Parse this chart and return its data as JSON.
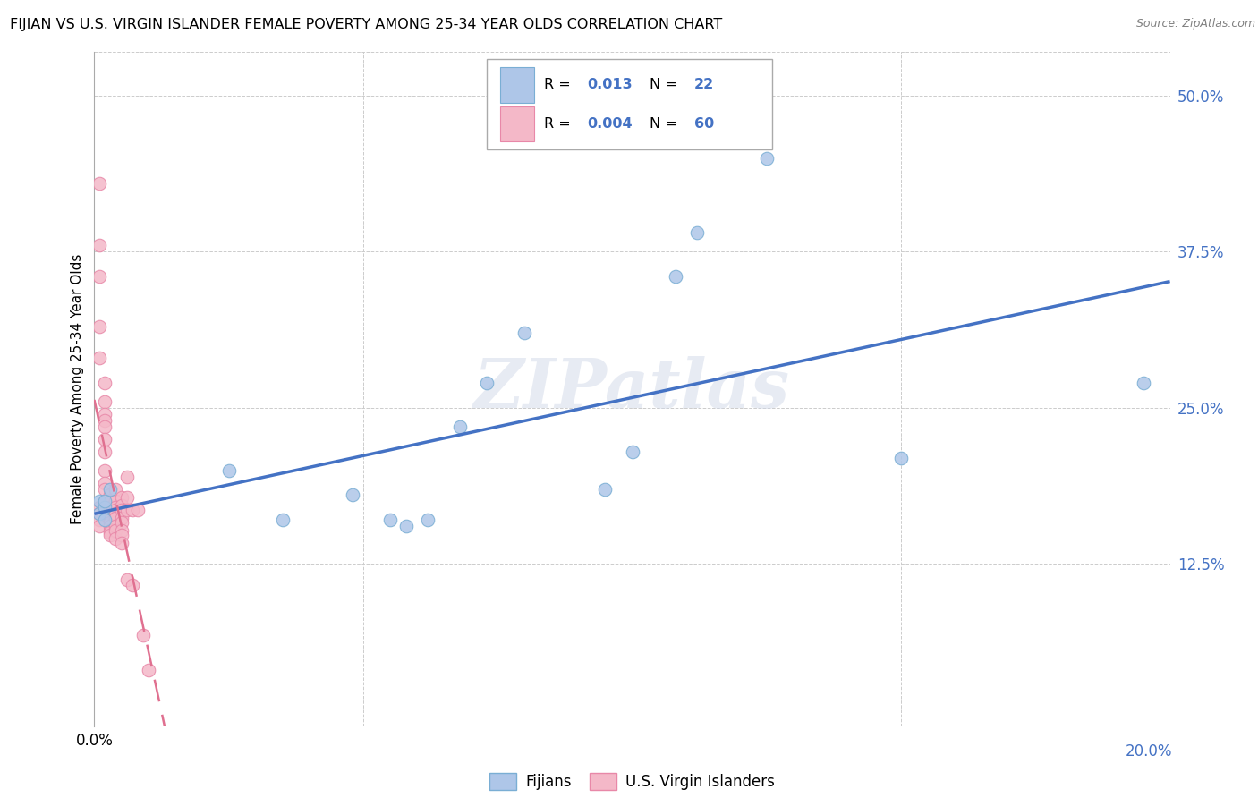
{
  "title": "FIJIAN VS U.S. VIRGIN ISLANDER FEMALE POVERTY AMONG 25-34 YEAR OLDS CORRELATION CHART",
  "source": "Source: ZipAtlas.com",
  "ylabel": "Female Poverty Among 25-34 Year Olds",
  "ytick_vals": [
    0.125,
    0.25,
    0.375,
    0.5
  ],
  "ytick_labels": [
    "12.5%",
    "25.0%",
    "37.5%",
    "50.0%"
  ],
  "xlim": [
    0.0,
    0.2
  ],
  "ylim": [
    -0.005,
    0.535
  ],
  "fijian_color": "#aec6e8",
  "fijian_edge": "#7aaed4",
  "usvi_color": "#f4b8c8",
  "usvi_edge": "#e888a8",
  "fijian_R": "0.013",
  "fijian_N": "22",
  "usvi_R": "0.004",
  "usvi_N": "60",
  "fijian_x": [
    0.001,
    0.001,
    0.002,
    0.002,
    0.002,
    0.003,
    0.025,
    0.035,
    0.048,
    0.055,
    0.058,
    0.062,
    0.068,
    0.073,
    0.08,
    0.095,
    0.1,
    0.108,
    0.112,
    0.125,
    0.15,
    0.195
  ],
  "fijian_y": [
    0.165,
    0.175,
    0.17,
    0.16,
    0.175,
    0.185,
    0.2,
    0.16,
    0.18,
    0.16,
    0.155,
    0.16,
    0.235,
    0.27,
    0.31,
    0.185,
    0.215,
    0.355,
    0.39,
    0.45,
    0.21,
    0.27
  ],
  "usvi_x": [
    0.001,
    0.001,
    0.001,
    0.001,
    0.001,
    0.001,
    0.001,
    0.001,
    0.001,
    0.002,
    0.002,
    0.002,
    0.002,
    0.002,
    0.002,
    0.002,
    0.002,
    0.002,
    0.002,
    0.002,
    0.003,
    0.003,
    0.003,
    0.003,
    0.003,
    0.003,
    0.003,
    0.003,
    0.003,
    0.003,
    0.003,
    0.003,
    0.003,
    0.003,
    0.004,
    0.004,
    0.004,
    0.004,
    0.004,
    0.004,
    0.004,
    0.004,
    0.004,
    0.005,
    0.005,
    0.005,
    0.005,
    0.005,
    0.005,
    0.005,
    0.005,
    0.006,
    0.006,
    0.006,
    0.006,
    0.007,
    0.007,
    0.008,
    0.009,
    0.01
  ],
  "usvi_y": [
    0.43,
    0.38,
    0.355,
    0.315,
    0.29,
    0.17,
    0.165,
    0.16,
    0.155,
    0.27,
    0.255,
    0.245,
    0.24,
    0.235,
    0.225,
    0.215,
    0.2,
    0.19,
    0.185,
    0.175,
    0.18,
    0.175,
    0.175,
    0.17,
    0.168,
    0.165,
    0.165,
    0.162,
    0.16,
    0.158,
    0.155,
    0.152,
    0.15,
    0.148,
    0.185,
    0.175,
    0.17,
    0.168,
    0.165,
    0.162,
    0.155,
    0.152,
    0.145,
    0.178,
    0.172,
    0.168,
    0.162,
    0.158,
    0.152,
    0.148,
    0.142,
    0.195,
    0.178,
    0.168,
    0.112,
    0.168,
    0.108,
    0.168,
    0.068,
    0.04
  ],
  "watermark": "ZIPatlas",
  "line_color_fijian": "#4472c4",
  "line_color_usvi": "#e07090",
  "bg_color": "#ffffff",
  "grid_color": "#cccccc",
  "marker_size": 110
}
